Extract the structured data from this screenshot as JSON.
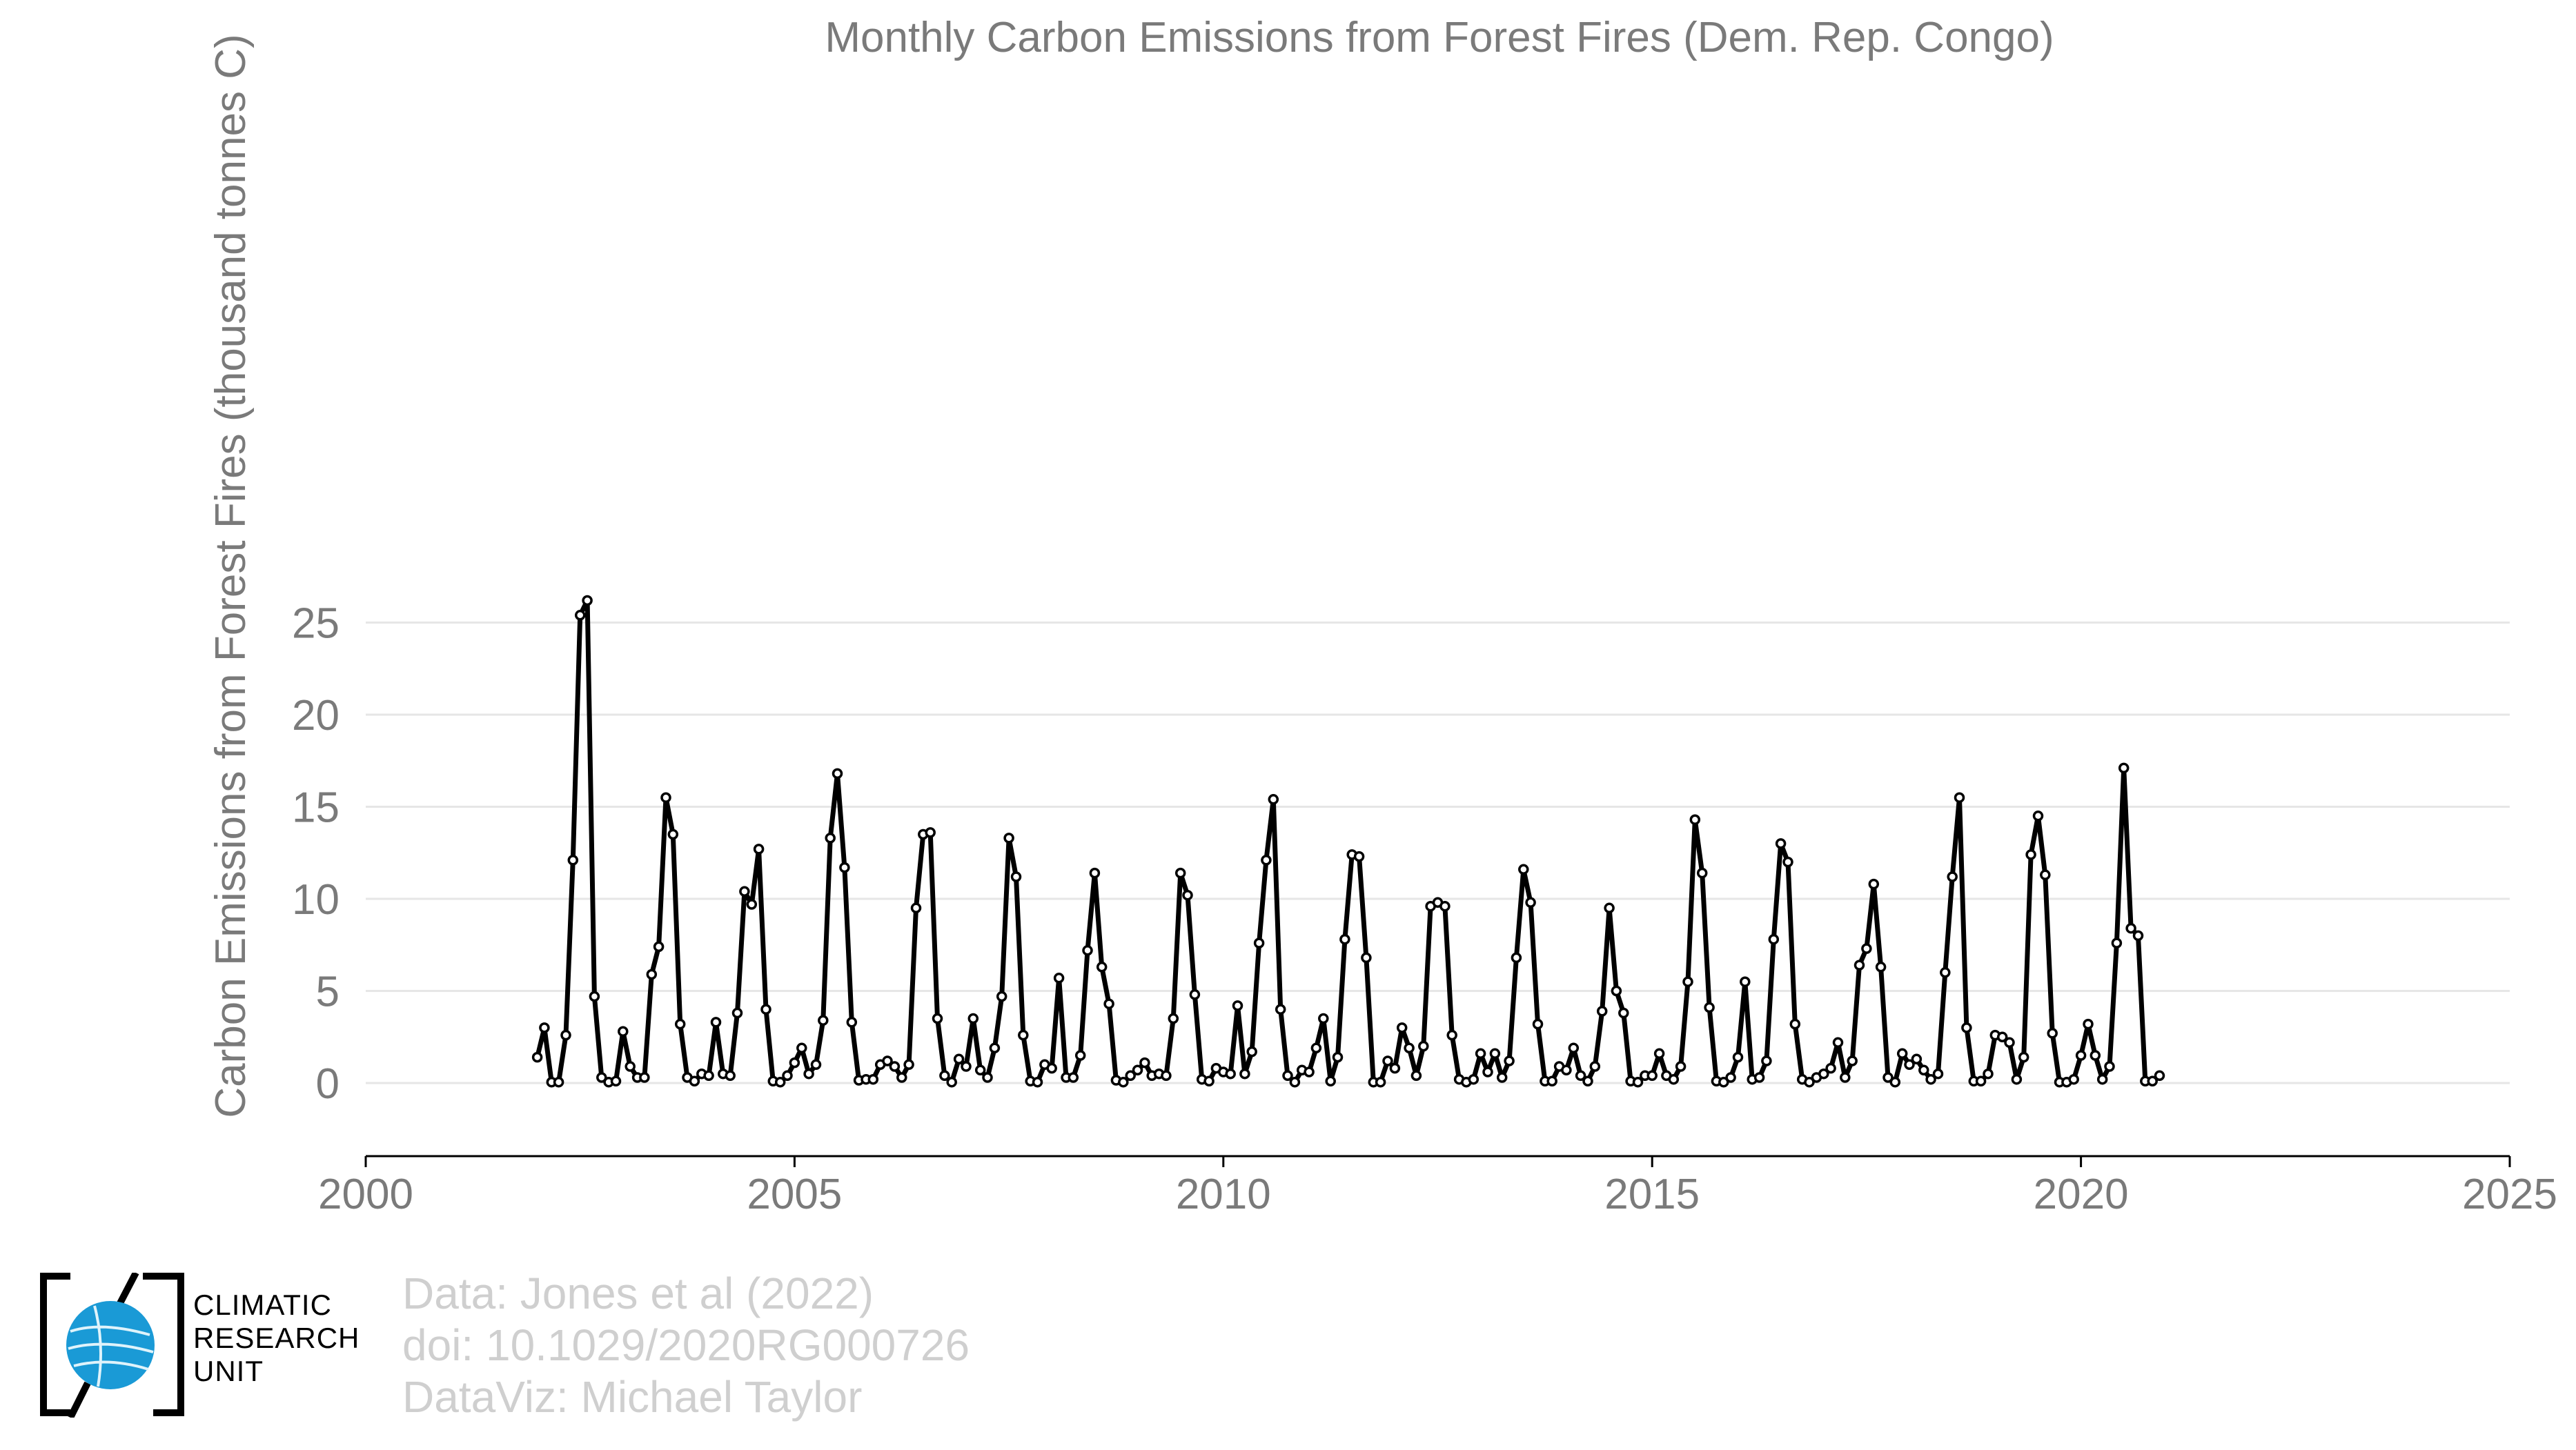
{
  "chart_data": {
    "type": "line",
    "title": "Monthly Carbon Emissions from Forest Fires (Dem. Rep. Congo)",
    "xlabel": "",
    "ylabel": "Carbon Emissions from Forest Fires (thousand tonnes C)",
    "xlim": [
      2000,
      2025
    ],
    "ylim": [
      -2,
      26.5
    ],
    "xticks": [
      "2000",
      "2005",
      "2010",
      "2015",
      "2020",
      "2025"
    ],
    "yticks": [
      "0",
      "5",
      "10",
      "15",
      "20",
      "25"
    ],
    "grid": "horizontal",
    "series": [
      {
        "start_year": 2001,
        "frequency": "monthly",
        "values": [
          1.4,
          3.0,
          0.05,
          0.05,
          2.6,
          12.1,
          25.4,
          26.2,
          4.7,
          0.3,
          0.05,
          0.1,
          2.8,
          0.9,
          0.3,
          0.3,
          5.9,
          7.4,
          15.5,
          13.5,
          3.2,
          0.3,
          0.1,
          0.5,
          0.4,
          3.3,
          0.5,
          0.4,
          3.8,
          10.4,
          9.7,
          12.7,
          4.0,
          0.1,
          0.05,
          0.4,
          1.1,
          1.9,
          0.5,
          1.0,
          3.4,
          13.3,
          16.8,
          11.7,
          3.3,
          0.15,
          0.2,
          0.2,
          1.0,
          1.2,
          0.9,
          0.3,
          1.0,
          9.5,
          13.5,
          13.6,
          3.5,
          0.4,
          0.05,
          1.3,
          0.9,
          3.5,
          0.7,
          0.3,
          1.9,
          4.7,
          13.3,
          11.2,
          2.6,
          0.1,
          0.05,
          1.0,
          0.8,
          5.7,
          0.3,
          0.3,
          1.5,
          7.2,
          11.4,
          6.3,
          4.3,
          0.15,
          0.05,
          0.4,
          0.7,
          1.1,
          0.4,
          0.5,
          0.4,
          3.5,
          11.4,
          10.2,
          4.8,
          0.2,
          0.1,
          0.8,
          0.6,
          0.5,
          4.2,
          0.5,
          1.7,
          7.6,
          12.1,
          15.4,
          4.0,
          0.4,
          0.05,
          0.7,
          0.6,
          1.9,
          3.5,
          0.1,
          1.4,
          7.8,
          12.4,
          12.3,
          6.8,
          0.05,
          0.05,
          1.2,
          0.8,
          3.0,
          1.9,
          0.4,
          2.0,
          9.6,
          9.8,
          9.6,
          2.6,
          0.2,
          0.05,
          0.2,
          1.6,
          0.6,
          1.6,
          0.3,
          1.2,
          6.8,
          11.6,
          9.8,
          3.2,
          0.1,
          0.1,
          0.9,
          0.7,
          1.9,
          0.4,
          0.1,
          0.9,
          3.9,
          9.5,
          5.0,
          3.8,
          0.1,
          0.05,
          0.4,
          0.4,
          1.6,
          0.4,
          0.2,
          0.9,
          5.5,
          14.3,
          11.4,
          4.1,
          0.1,
          0.05,
          0.3,
          1.4,
          5.5,
          0.2,
          0.3,
          1.2,
          7.8,
          13.0,
          12.0,
          3.2,
          0.2,
          0.05,
          0.3,
          0.5,
          0.8,
          2.2,
          0.3,
          1.2,
          6.4,
          7.3,
          10.8,
          6.3,
          0.3,
          0.05,
          1.6,
          1.0,
          1.3,
          0.7,
          0.2,
          0.5,
          6.0,
          11.2,
          15.5,
          3.0,
          0.1,
          0.1,
          0.5,
          2.6,
          2.5,
          2.2,
          0.2,
          1.4,
          12.4,
          14.5,
          11.3,
          2.7,
          0.05,
          0.05,
          0.2,
          1.5,
          3.2,
          1.5,
          0.2,
          0.9,
          7.6,
          17.1,
          8.4,
          8.0,
          0.1,
          0.1,
          0.4
        ]
      }
    ]
  },
  "credits": {
    "line1": "Data: Jones et al (2022)",
    "line2": "doi: 10.1029/2020RG000726",
    "line3": "DataViz: Michael Taylor"
  },
  "logo": {
    "line1": "CLIMATIC",
    "line2": "RESEARCH",
    "line3": "UNIT",
    "globe_color": "#1a9ad6"
  }
}
